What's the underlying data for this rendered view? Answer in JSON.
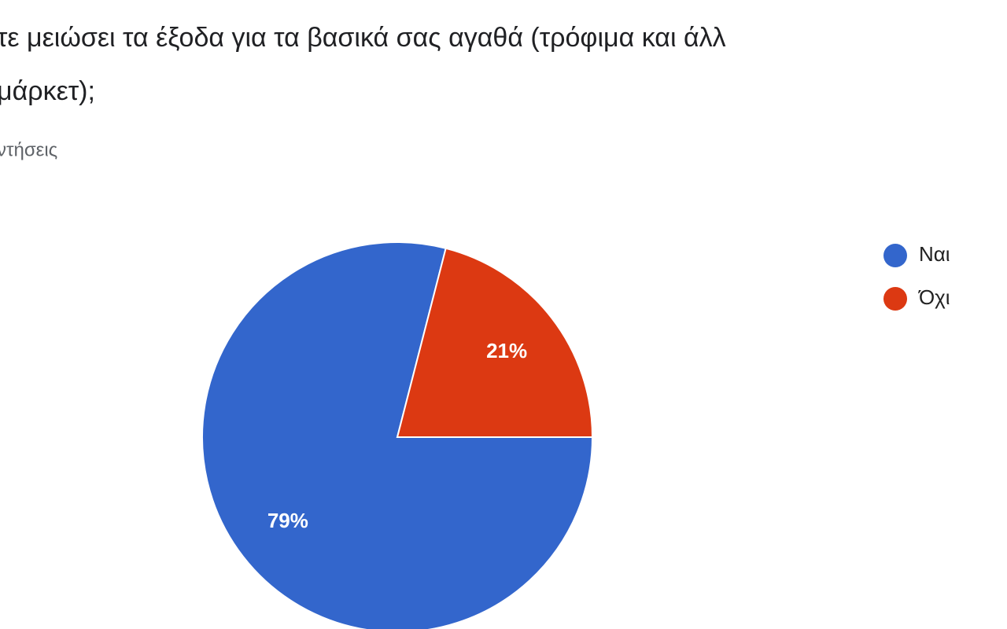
{
  "chart_data": {
    "type": "pie",
    "title": [
      "τε μειώσει τα έξοδα για τα βασικά σας αγαθά (τρόφιμα και άλλ",
      "μάρκετ);"
    ],
    "subtitle": "ντήσεις",
    "categories": [
      "Ναι",
      "Όχι"
    ],
    "values": [
      79,
      21
    ],
    "value_labels": [
      "79%",
      "21%"
    ],
    "colors": [
      "#3366cc",
      "#dc3912"
    ],
    "legend": "right"
  }
}
